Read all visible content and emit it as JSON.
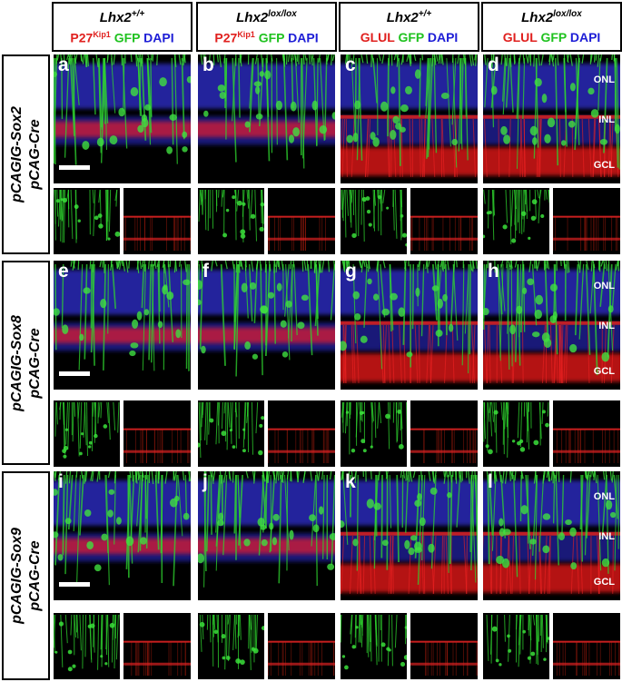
{
  "columns": [
    {
      "genotype_base": "Lhx2",
      "genotype_sup": "+/+",
      "stain_red": "P27",
      "stain_red_sup": "Kip1",
      "stain_green": "GFP",
      "stain_blue": "DAPI"
    },
    {
      "genotype_base": "Lhx2",
      "genotype_sup": "lox/lox",
      "stain_red": "P27",
      "stain_red_sup": "Kip1",
      "stain_green": "GFP",
      "stain_blue": "DAPI"
    },
    {
      "genotype_base": "Lhx2",
      "genotype_sup": "+/+",
      "stain_red": "GLUL",
      "stain_red_sup": "",
      "stain_green": "GFP",
      "stain_blue": "DAPI"
    },
    {
      "genotype_base": "Lhx2",
      "genotype_sup": "lox/lox",
      "stain_red": "GLUL",
      "stain_red_sup": "",
      "stain_green": "GFP",
      "stain_blue": "DAPI"
    }
  ],
  "rows": [
    {
      "line1": "pCAGIG-Sox2",
      "line2": "pCAG-Cre",
      "panel_labels": [
        "a",
        "b",
        "c",
        "d"
      ]
    },
    {
      "line1": "pCAGIG-Sox8",
      "line2": "pCAG-Cre",
      "panel_labels": [
        "e",
        "f",
        "g",
        "h"
      ]
    },
    {
      "line1": "pCAGIG-Sox9",
      "line2": "pCAG-Cre",
      "panel_labels": [
        "i",
        "j",
        "k",
        "l"
      ]
    }
  ],
  "layer_labels": [
    "ONL",
    "INL",
    "GCL"
  ],
  "colors": {
    "red": "#e0201e",
    "green": "#1fc21f",
    "blue": "#1d1dd6",
    "background": "#000000",
    "frame": "#000000"
  }
}
